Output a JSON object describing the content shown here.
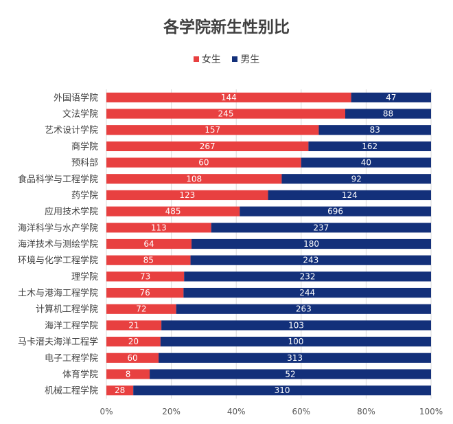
{
  "chart_data": {
    "type": "bar",
    "orientation": "horizontal",
    "stacked": "percent",
    "title": "各学院新生性别比",
    "categories": [
      "外国语学院",
      "文法学院",
      "艺术设计学院",
      "商学院",
      "预科部",
      "食品科学与工程学院",
      "药学院",
      "应用技术学院",
      "海洋科学与水产学院",
      "海洋技术与测绘学院",
      "环境与化学工程学院",
      "理学院",
      "土木与港海工程学院",
      "计算机工程学院",
      "海洋工程学院",
      "马卡溍夫海洋工程学",
      "电子工程学院",
      "体育学院",
      "机械工程学院"
    ],
    "series": [
      {
        "name": "女生",
        "color": "#e84040",
        "values": [
          144,
          245,
          157,
          267,
          60,
          108,
          123,
          485,
          113,
          64,
          85,
          73,
          76,
          72,
          21,
          20,
          60,
          8,
          28
        ]
      },
      {
        "name": "男生",
        "color": "#13307a",
        "values": [
          47,
          88,
          83,
          162,
          40,
          92,
          124,
          696,
          237,
          180,
          243,
          232,
          244,
          263,
          103,
          100,
          313,
          52,
          310
        ]
      }
    ],
    "x_ticks": [
      "0%",
      "20%",
      "40%",
      "60%",
      "80%",
      "100%"
    ],
    "xlim": [
      0,
      100
    ],
    "legend_position": "top",
    "grid": true
  }
}
